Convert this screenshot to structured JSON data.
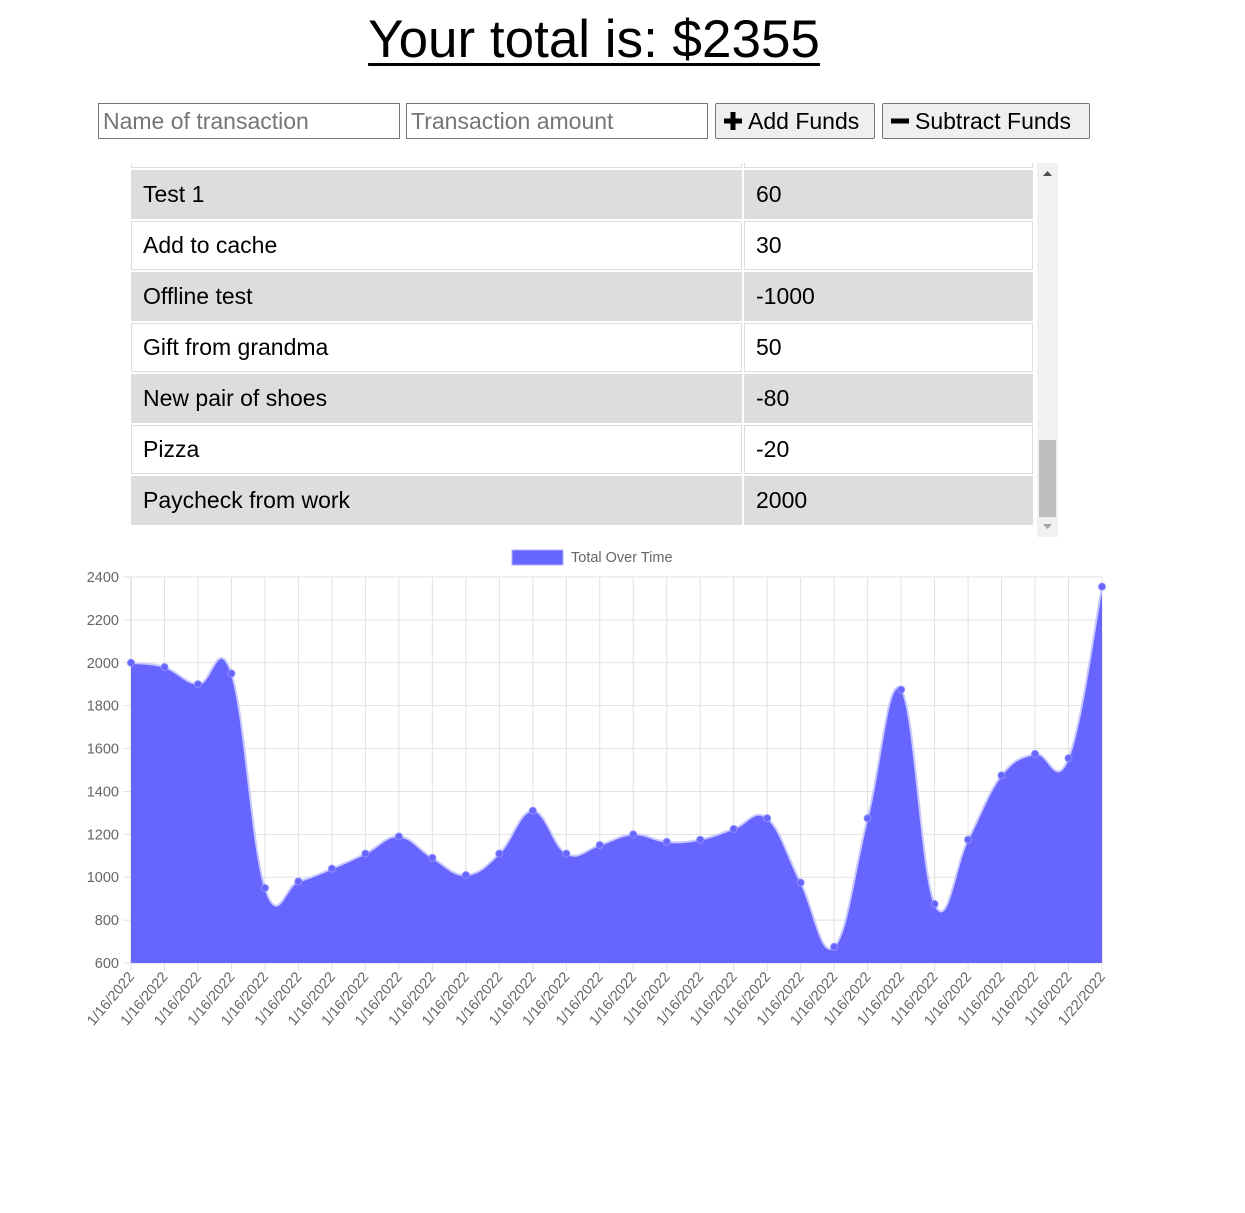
{
  "header": {
    "title": "Your total is: $2355",
    "total": 2355
  },
  "form": {
    "name_placeholder": "Name of transaction",
    "name_value": "",
    "amount_placeholder": "Transaction amount",
    "amount_value": "",
    "add_label": "Add Funds",
    "add_icon": "plus-icon",
    "subtract_label": "Subtract Funds",
    "subtract_icon": "minus-icon"
  },
  "transactions": {
    "rows": [
      {
        "name": "Test 1",
        "value": "60"
      },
      {
        "name": "Add to cache",
        "value": "30"
      },
      {
        "name": "Offline test",
        "value": "-1000"
      },
      {
        "name": "Gift from grandma",
        "value": "50"
      },
      {
        "name": "New pair of shoes",
        "value": "-80"
      },
      {
        "name": "Pizza",
        "value": "-20"
      },
      {
        "name": "Paycheck from work",
        "value": "2000"
      }
    ]
  },
  "colors": {
    "series_fill": "#6666ff",
    "series_line": "#6666ff",
    "row_alt": "#dddddd",
    "grid": "#e5e5e5"
  },
  "chart_data": {
    "type": "area",
    "title": "",
    "legend": [
      "Total Over Time"
    ],
    "legend_position": "top",
    "xlabel": "",
    "ylabel": "",
    "ylim": [
      600,
      2400
    ],
    "yticks": [
      600,
      800,
      1000,
      1200,
      1400,
      1600,
      1800,
      2000,
      2200,
      2400
    ],
    "grid": true,
    "categories": [
      "1/16/2022",
      "1/16/2022",
      "1/16/2022",
      "1/16/2022",
      "1/16/2022",
      "1/16/2022",
      "1/16/2022",
      "1/16/2022",
      "1/16/2022",
      "1/16/2022",
      "1/16/2022",
      "1/16/2022",
      "1/16/2022",
      "1/16/2022",
      "1/16/2022",
      "1/16/2022",
      "1/16/2022",
      "1/16/2022",
      "1/16/2022",
      "1/16/2022",
      "1/16/2022",
      "1/16/2022",
      "1/16/2022",
      "1/16/2022",
      "1/16/2022",
      "1/16/2022",
      "1/16/2022",
      "1/16/2022",
      "1/16/2022",
      "1/22/2022"
    ],
    "series": [
      {
        "name": "Total Over Time",
        "values": [
          2000,
          1980,
          1900,
          1950,
          950,
          980,
          1040,
          1110,
          1190,
          1090,
          1010,
          1110,
          1310,
          1110,
          1150,
          1200,
          1165,
          1175,
          1225,
          1275,
          975,
          675,
          1275,
          1875,
          875,
          1175,
          1475,
          1575,
          1555,
          2355
        ]
      }
    ]
  }
}
